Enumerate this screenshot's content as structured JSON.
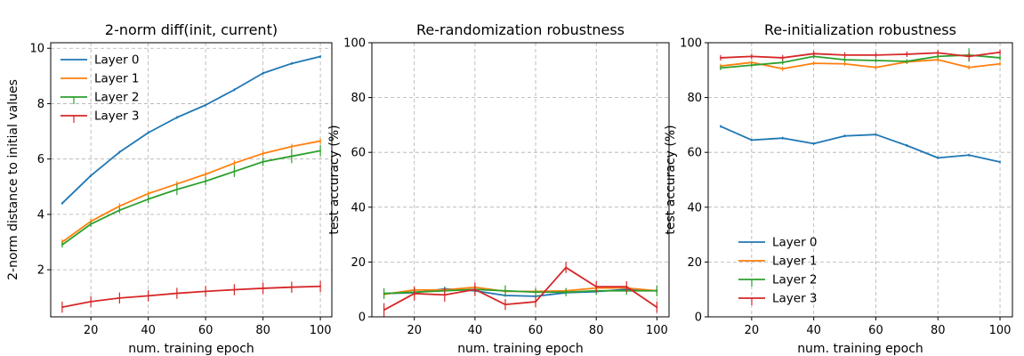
{
  "colors": {
    "layer0": "#1f77b4",
    "layer1": "#ff7f0e",
    "layer2": "#2ca02c",
    "layer3": "#d62728"
  },
  "chart_data": [
    {
      "type": "line",
      "title": "2-norm diff(init, current)",
      "xlabel": "num. training epoch",
      "ylabel": "2-norm distance to initial values",
      "xlim": [
        6,
        104
      ],
      "ylim": [
        0.3,
        10.2
      ],
      "xticks": [
        20,
        40,
        60,
        80,
        100
      ],
      "yticks": [
        2,
        4,
        6,
        8,
        10
      ],
      "grid": true,
      "legend": "upper-left",
      "x": [
        10,
        20,
        30,
        40,
        50,
        60,
        70,
        80,
        90,
        100
      ],
      "series": [
        {
          "name": "Layer 0",
          "color_key": "layer0",
          "values": [
            4.4,
            5.4,
            6.25,
            6.95,
            7.5,
            7.95,
            8.5,
            9.1,
            9.45,
            9.7
          ],
          "err": [
            0.05,
            0.05,
            0.05,
            0.05,
            0.05,
            0.05,
            0.05,
            0.05,
            0.05,
            0.05
          ]
        },
        {
          "name": "Layer 1",
          "color_key": "layer1",
          "values": [
            3.0,
            3.75,
            4.3,
            4.75,
            5.1,
            5.45,
            5.85,
            6.2,
            6.45,
            6.65
          ],
          "err": [
            0.1,
            0.1,
            0.1,
            0.1,
            0.1,
            0.1,
            0.1,
            0.1,
            0.1,
            0.1
          ]
        },
        {
          "name": "Layer 2",
          "color_key": "layer2",
          "values": [
            2.9,
            3.65,
            4.15,
            4.55,
            4.9,
            5.2,
            5.55,
            5.9,
            6.1,
            6.3
          ],
          "err": [
            0.1,
            0.1,
            0.1,
            0.15,
            0.2,
            0.15,
            0.2,
            0.15,
            0.25,
            0.2
          ]
        },
        {
          "name": "Layer 3",
          "color_key": "layer3",
          "values": [
            0.65,
            0.85,
            0.98,
            1.06,
            1.15,
            1.22,
            1.28,
            1.33,
            1.37,
            1.4
          ],
          "err": [
            0.2,
            0.2,
            0.2,
            0.2,
            0.2,
            0.2,
            0.2,
            0.2,
            0.2,
            0.2
          ]
        }
      ]
    },
    {
      "type": "line",
      "title": "Re-randomization robustness",
      "xlabel": "num. training epoch",
      "ylabel": "test accuracy (%)",
      "xlim": [
        6,
        104
      ],
      "ylim": [
        0,
        100
      ],
      "xticks": [
        20,
        40,
        60,
        80,
        100
      ],
      "yticks": [
        0,
        20,
        40,
        60,
        80,
        100
      ],
      "grid": true,
      "legend": "none",
      "x": [
        10,
        20,
        30,
        40,
        50,
        60,
        70,
        80,
        90,
        100
      ],
      "series": [
        {
          "name": "Layer 0",
          "color_key": "layer0",
          "values": [
            8.5,
            8.8,
            10.2,
            9.5,
            7.8,
            7.5,
            8.8,
            9.2,
            10.0,
            9.5
          ],
          "err": [
            0.5,
            0.5,
            0.8,
            0.5,
            0.5,
            0.5,
            0.5,
            0.5,
            0.5,
            0.5
          ]
        },
        {
          "name": "Layer 1",
          "color_key": "layer1",
          "values": [
            8.2,
            9.8,
            9.8,
            10.8,
            9.3,
            9.3,
            9.5,
            10.5,
            10.5,
            9.5
          ],
          "err": [
            0.8,
            1.0,
            0.8,
            0.8,
            0.8,
            0.8,
            1.0,
            0.8,
            0.8,
            0.8
          ]
        },
        {
          "name": "Layer 2",
          "color_key": "layer2",
          "values": [
            8.5,
            9.0,
            9.5,
            10.0,
            9.5,
            9.0,
            9.0,
            9.5,
            9.5,
            9.5
          ],
          "err": [
            2.0,
            1.5,
            1.5,
            1.5,
            2.0,
            1.5,
            1.5,
            1.5,
            1.5,
            2.0
          ]
        },
        {
          "name": "Layer 3",
          "color_key": "layer3",
          "values": [
            2.5,
            8.5,
            8.0,
            10.0,
            4.5,
            5.5,
            18.0,
            11.0,
            11.0,
            3.5
          ],
          "err": [
            2.5,
            2.5,
            2.5,
            2.5,
            2.0,
            2.0,
            2.0,
            2.0,
            2.0,
            2.0
          ]
        }
      ]
    },
    {
      "type": "line",
      "title": "Re-initialization robustness",
      "xlabel": "num. training epoch",
      "ylabel": "test accuracy (%)",
      "xlim": [
        6,
        104
      ],
      "ylim": [
        0,
        100
      ],
      "xticks": [
        20,
        40,
        60,
        80,
        100
      ],
      "yticks": [
        0,
        20,
        40,
        60,
        80,
        100
      ],
      "grid": true,
      "legend": "lower-left",
      "x": [
        10,
        20,
        30,
        40,
        50,
        60,
        70,
        80,
        90,
        100
      ],
      "series": [
        {
          "name": "Layer 0",
          "color_key": "layer0",
          "values": [
            69.5,
            64.5,
            65.2,
            63.2,
            66.0,
            66.5,
            62.5,
            58.0,
            59.0,
            56.5
          ],
          "err": [
            0.5,
            0.5,
            0.5,
            0.5,
            0.5,
            0.5,
            0.5,
            0.5,
            0.5,
            0.5
          ]
        },
        {
          "name": "Layer 1",
          "color_key": "layer1",
          "values": [
            91.5,
            92.8,
            90.5,
            92.5,
            92.3,
            91.0,
            93.0,
            93.8,
            91.0,
            92.3
          ],
          "err": [
            0.8,
            0.8,
            0.8,
            0.8,
            0.8,
            0.8,
            0.8,
            0.8,
            0.8,
            0.8
          ]
        },
        {
          "name": "Layer 2",
          "color_key": "layer2",
          "values": [
            90.8,
            91.8,
            92.8,
            95.0,
            93.8,
            93.5,
            93.2,
            95.0,
            95.5,
            94.5
          ],
          "err": [
            0.8,
            0.8,
            0.8,
            0.8,
            0.8,
            0.8,
            0.8,
            0.8,
            2.5,
            1.0
          ]
        },
        {
          "name": "Layer 3",
          "color_key": "layer3",
          "values": [
            94.5,
            95.0,
            94.5,
            96.0,
            95.5,
            95.5,
            95.8,
            96.3,
            95.0,
            96.5
          ],
          "err": [
            1.0,
            1.0,
            1.0,
            1.0,
            1.0,
            1.0,
            1.0,
            1.0,
            1.5,
            1.0
          ]
        }
      ]
    }
  ]
}
